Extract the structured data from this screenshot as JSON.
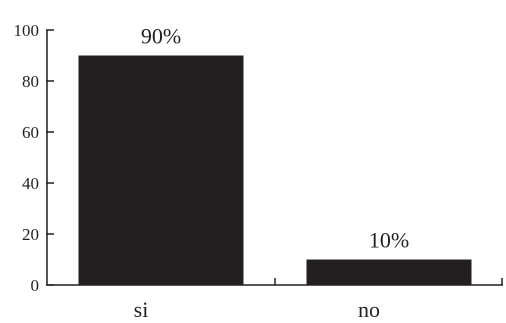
{
  "chart_data": {
    "type": "bar",
    "categories": [
      "si",
      "no"
    ],
    "values": [
      90,
      10
    ],
    "data_labels": [
      "90%",
      "10%"
    ],
    "xlabel": "",
    "ylabel": "",
    "ylim": [
      0,
      100
    ],
    "yticks": [
      0,
      20,
      40,
      60,
      80,
      100
    ],
    "grid": false,
    "bar_color": "#231f20"
  }
}
